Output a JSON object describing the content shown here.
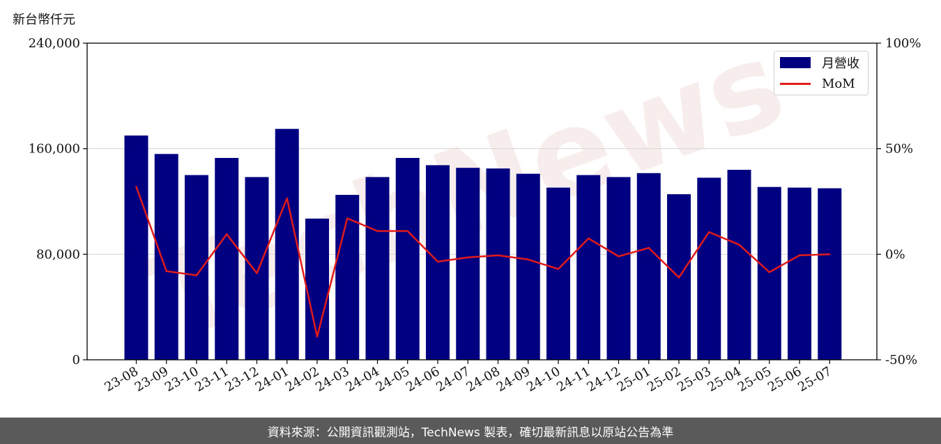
{
  "unit_label": "新台幣仟元",
  "footer_text": "資料來源：公開資訊觀測站，TechNews 製表，確切最新訊息以原站公告為準",
  "watermark": "TechNews",
  "colors": {
    "bar": "#000080",
    "line": "#e11a1a",
    "grid": "#d4d4d4",
    "footer_bg": "#5a5a5a"
  },
  "legend": {
    "bar_label": "月營收",
    "line_label": "MoM",
    "position": "top-right"
  },
  "chart_data": {
    "type": "bar",
    "categories": [
      "23-08",
      "23-09",
      "23-10",
      "23-11",
      "23-12",
      "24-01",
      "24-02",
      "24-03",
      "24-04",
      "24-05",
      "24-06",
      "24-07",
      "24-08",
      "24-09",
      "24-10",
      "24-11",
      "24-12",
      "25-01",
      "25-02",
      "25-03",
      "25-04",
      "25-05",
      "25-06",
      "25-07"
    ],
    "series": [
      {
        "name": "月營收",
        "type": "bar",
        "axis": "left",
        "values": [
          170000,
          156000,
          140000,
          153000,
          138500,
          175000,
          107000,
          125000,
          138500,
          153000,
          147500,
          145500,
          145000,
          141000,
          130500,
          140000,
          138500,
          141500,
          125500,
          138000,
          144000,
          131000,
          130500,
          130000
        ]
      },
      {
        "name": "MoM",
        "type": "line",
        "axis": "right",
        "values": [
          32,
          -8,
          -10,
          9.5,
          -9,
          26.5,
          -39,
          17,
          11,
          11,
          -3.5,
          -1.5,
          -0.5,
          -2.5,
          -7,
          7.5,
          -1,
          3,
          -11,
          10.5,
          4.5,
          -8.5,
          -0.5,
          0
        ]
      }
    ],
    "y_left": {
      "range": [
        0,
        240000
      ],
      "ticks": [
        "0",
        "80,000",
        "160,000",
        "240,000"
      ],
      "tick_values": [
        0,
        80000,
        160000,
        240000
      ]
    },
    "y_right": {
      "range": [
        -50,
        100
      ],
      "ticks": [
        "-50%",
        "0%",
        "50%",
        "100%"
      ],
      "tick_values": [
        -50,
        0,
        50,
        100
      ]
    },
    "grid": true
  }
}
